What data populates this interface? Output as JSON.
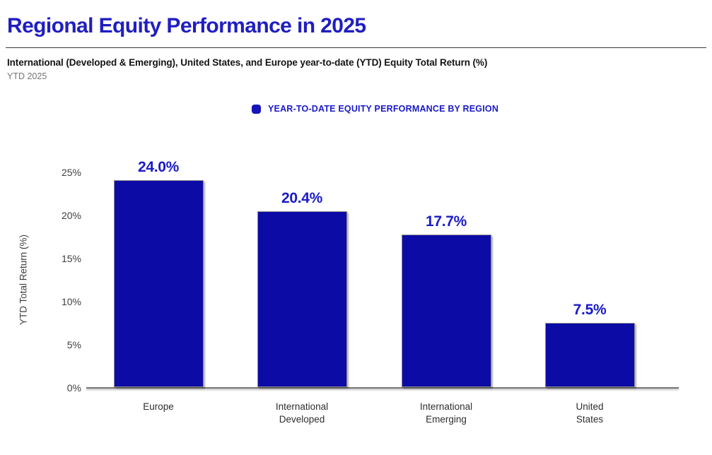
{
  "page": {
    "title": "Regional Equity Performance in 2025",
    "subtitle": "International (Developed & Emerging), United States, and Europe year-to-date (YTD) Equity Total Return (%)",
    "period": "YTD 2025"
  },
  "legend": {
    "label": "YEAR-TO-DATE EQUITY PERFORMANCE BY REGION"
  },
  "colors": {
    "title_blue": "#201ec0",
    "bar_blue": "#0d0ba6",
    "value_label_blue": "#1a1ac8",
    "legend_blue": "#1a1ac8",
    "axis_gray": "#757575",
    "tick_text_gray": "#3f3f3f"
  },
  "chart_data": {
    "type": "bar",
    "categories": [
      "Europe",
      "International\nDeveloped",
      "International\nEmerging",
      "United\nStates"
    ],
    "values": [
      24.0,
      20.4,
      17.7,
      7.5
    ],
    "value_labels": [
      "24.0%",
      "20.4%",
      "17.7%",
      "7.5%"
    ],
    "title": "",
    "xlabel": "",
    "ylabel": "YTD Total Return (%)",
    "ylim": [
      0,
      25
    ],
    "ytick_step": 5,
    "ytick_labels": [
      "0%",
      "5%",
      "10%",
      "15%",
      "20%",
      "25%"
    ],
    "legend_entries": [
      "YEAR-TO-DATE EQUITY PERFORMANCE BY REGION"
    ],
    "legend_position": "top-center",
    "grid": false,
    "bar_color": "#0d0ba6"
  }
}
